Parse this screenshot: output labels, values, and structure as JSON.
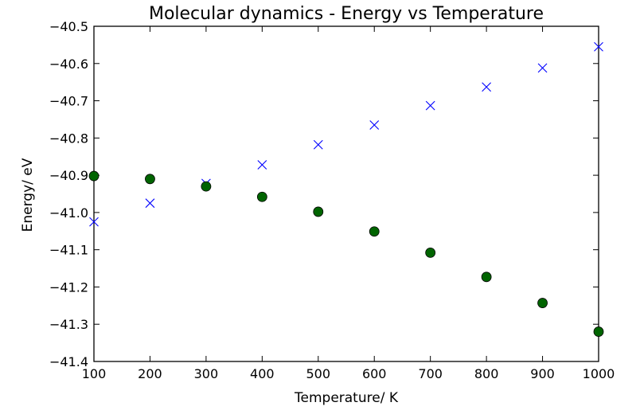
{
  "chart_data": {
    "type": "scatter",
    "title": "Molecular dynamics - Energy vs Temperature",
    "xlabel": "Temperature/ K",
    "ylabel": "Energy/ eV",
    "xlim": [
      100,
      1000
    ],
    "ylim": [
      -41.4,
      -40.5
    ],
    "xticks": [
      100,
      200,
      300,
      400,
      500,
      600,
      700,
      800,
      900,
      1000
    ],
    "yticks": [
      -40.5,
      -40.6,
      -40.7,
      -40.8,
      -40.9,
      -41.0,
      -41.1,
      -41.2,
      -41.3,
      -41.4
    ],
    "ytick_labels": [
      "−40.5",
      "−40.6",
      "−40.7",
      "−40.8",
      "−40.9",
      "−41.0",
      "−41.1",
      "−41.2",
      "−41.3",
      "−41.4"
    ],
    "grid": false,
    "legend": false,
    "series": [
      {
        "marker": "x",
        "color": "#0000ff",
        "x": [
          100,
          200,
          300,
          400,
          500,
          600,
          700,
          800,
          900,
          1000
        ],
        "y": [
          -41.025,
          -40.975,
          -40.922,
          -40.872,
          -40.818,
          -40.765,
          -40.713,
          -40.663,
          -40.612,
          -40.555
        ]
      },
      {
        "marker": "circle",
        "color": "#006400",
        "x": [
          100,
          200,
          300,
          400,
          500,
          600,
          700,
          800,
          900,
          1000
        ],
        "y": [
          -40.902,
          -40.91,
          -40.93,
          -40.958,
          -40.998,
          -41.051,
          -41.108,
          -41.173,
          -41.243,
          -41.32
        ]
      }
    ]
  }
}
